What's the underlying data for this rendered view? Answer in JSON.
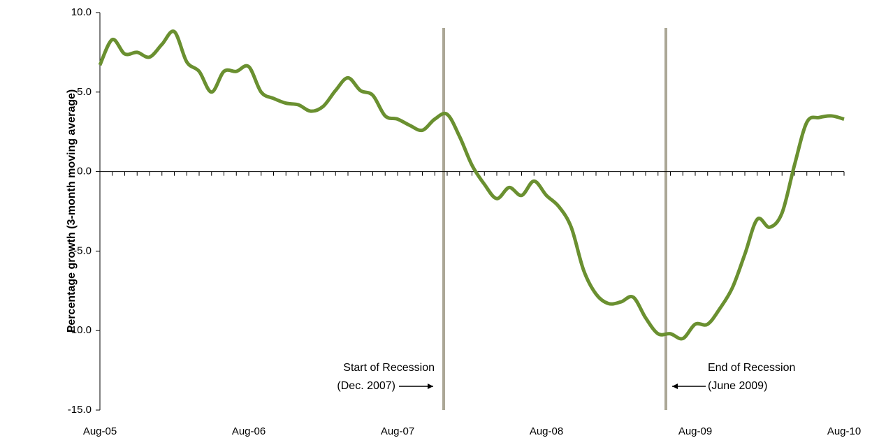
{
  "chart_data": {
    "type": "line",
    "y_label": "Percentage growth (3-month moving average)",
    "categories": [
      "Aug-05",
      null,
      null,
      null,
      null,
      null,
      null,
      null,
      null,
      null,
      null,
      null,
      "Aug-06",
      null,
      null,
      null,
      null,
      null,
      null,
      null,
      null,
      null,
      null,
      null,
      "Aug-07",
      null,
      null,
      null,
      null,
      null,
      null,
      null,
      null,
      null,
      null,
      null,
      "Aug-08",
      null,
      null,
      null,
      null,
      null,
      null,
      null,
      null,
      null,
      null,
      null,
      "Aug-09",
      null,
      null,
      null,
      null,
      null,
      null,
      null,
      null,
      null,
      null,
      null,
      "Aug-10"
    ],
    "series": [
      {
        "name": "Percentage growth",
        "color": "#6a9030",
        "values": [
          6.7,
          8.3,
          7.4,
          7.5,
          7.2,
          8.0,
          8.8,
          6.9,
          6.3,
          5.0,
          6.3,
          6.3,
          6.6,
          5.0,
          4.6,
          4.3,
          4.2,
          3.8,
          4.1,
          5.1,
          5.9,
          5.1,
          4.8,
          3.5,
          3.3,
          2.9,
          2.6,
          3.3,
          3.6,
          2.2,
          0.4,
          -0.8,
          -1.7,
          -1.0,
          -1.5,
          -0.6,
          -1.5,
          -2.2,
          -3.5,
          -6.2,
          -7.7,
          -8.3,
          -8.2,
          -7.9,
          -9.2,
          -10.2,
          -10.2,
          -10.5,
          -9.6,
          -9.6,
          -8.6,
          -7.3,
          -5.2,
          -3.0,
          -3.5,
          -2.6,
          0.4,
          3.1,
          3.4,
          3.5,
          3.3
        ]
      }
    ],
    "ylim": [
      -15,
      10
    ],
    "yticks": [
      {
        "value": 10,
        "label": "10.0"
      },
      {
        "value": 5,
        "label": "5.0"
      },
      {
        "value": 0,
        "label": "0.0"
      },
      {
        "value": -5,
        "label": "-5.0"
      },
      {
        "value": -10,
        "label": "-10.0"
      },
      {
        "value": -15,
        "label": "-15.0"
      }
    ],
    "annotations": [
      {
        "lines": [
          "Start of Recession",
          "(Dec. 2007)"
        ]
      },
      {
        "lines": [
          "End of Recession",
          "(June 2009)"
        ]
      }
    ],
    "grid": false
  }
}
